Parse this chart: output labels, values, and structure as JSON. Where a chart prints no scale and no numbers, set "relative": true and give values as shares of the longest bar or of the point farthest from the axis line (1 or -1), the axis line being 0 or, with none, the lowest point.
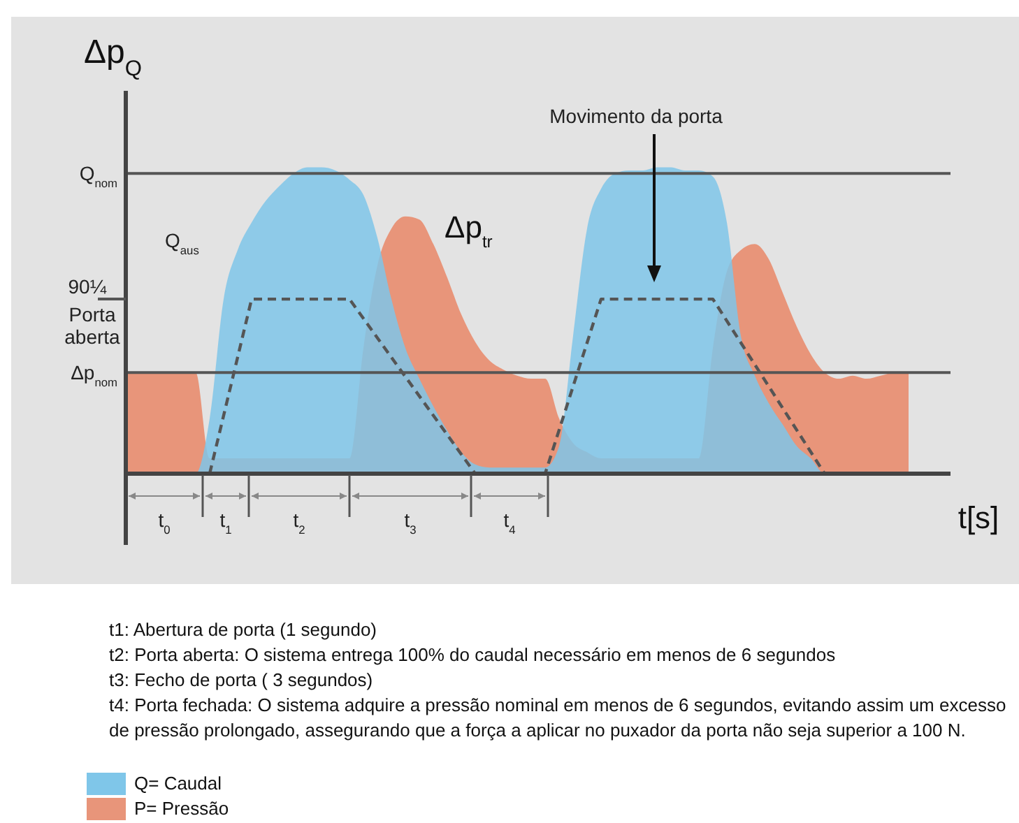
{
  "chart_data": {
    "type": "area",
    "relative": true,
    "ylabel": "Δp$_{Q}$",
    "xlabel": "t[s]",
    "categories": [
      null,
      null,
      null,
      null,
      null,
      null,
      null,
      null,
      null,
      null,
      null,
      null,
      null,
      null,
      null,
      null,
      null,
      null,
      null,
      null,
      null,
      null,
      null,
      null,
      null,
      null,
      null,
      null,
      null,
      null,
      null,
      null,
      null,
      null,
      null,
      null,
      null,
      null,
      null,
      null,
      null,
      null,
      null,
      null,
      null,
      null,
      null,
      null,
      null,
      null,
      null,
      null,
      null,
      null,
      null,
      null,
      null,
      null,
      null,
      null
    ],
    "series": [
      {
        "name": "Q= Caudal",
        "color": "#7fc6e9",
        "values": [
          0,
          0,
          0,
          0,
          0,
          0,
          0.18,
          0.57,
          0.73,
          0.82,
          0.89,
          0.94,
          0.98,
          1,
          1,
          0.99,
          0.96,
          0.91,
          0.77,
          0.57,
          0.41,
          0.31,
          0.22,
          0.14,
          0.07,
          0.03,
          0.02,
          0.02,
          0.02,
          0.02,
          0.02,
          0.09,
          0.45,
          0.8,
          0.93,
          0.98,
          0.99,
          0.99,
          1,
          1,
          0.99,
          0.99,
          0.97,
          0.82,
          0.45,
          0.32,
          0.23,
          0.16,
          0.09,
          0.05,
          0,
          0,
          0,
          0,
          0,
          0,
          0,
          null,
          null,
          null
        ]
      },
      {
        "name": "P= Pressão",
        "color": "#e8957a",
        "values": [
          0.33,
          0.33,
          0.33,
          0.33,
          0.33,
          0.33,
          0.05,
          0.05,
          0.05,
          0.05,
          0.05,
          0.05,
          0.05,
          0.05,
          0.05,
          0.05,
          0.05,
          0.41,
          0.68,
          0.8,
          0.84,
          0.83,
          0.75,
          0.64,
          0.52,
          0.43,
          0.37,
          0.34,
          0.32,
          0.31,
          0.31,
          0.18,
          0.1,
          0.07,
          0.05,
          0.05,
          0.05,
          0.05,
          0.05,
          0.05,
          0.05,
          0.05,
          0.41,
          0.66,
          0.73,
          0.75,
          0.7,
          0.59,
          0.48,
          0.39,
          0.33,
          0.31,
          0.32,
          0.31,
          0.32,
          0.33,
          0.33,
          null,
          null,
          null
        ]
      },
      {
        "type": "line",
        "color": "#555555",
        "line_style": "dashed",
        "values": [
          null,
          null,
          null,
          null,
          null,
          null,
          0,
          null,
          null,
          0.57,
          null,
          null,
          null,
          null,
          null,
          null,
          0.57,
          null,
          null,
          null,
          null,
          null,
          null,
          null,
          null,
          0,
          null,
          null,
          null,
          null,
          0,
          null,
          null,
          null,
          0.57,
          null,
          null,
          null,
          null,
          null,
          null,
          null,
          0.57,
          null,
          null,
          null,
          null,
          null,
          null,
          null,
          0,
          null,
          null,
          null,
          null,
          null,
          null,
          null,
          null,
          null
        ]
      }
    ],
    "ref_lines": [
      {
        "axis": "y",
        "value": 0.98,
        "label": "Q$_{nom}$",
        "color": "#555555"
      },
      {
        "axis": "y",
        "value": 0.33,
        "label": "Δp$_{nom}$",
        "color": "#555555"
      }
    ],
    "annotations": [
      "Q$_{aus}$",
      "Δp$_{tr}$",
      "Movimento da porta",
      "t$_{0}$",
      "t$_{1}$",
      "t$_{2}$",
      "t$_{3}$",
      "t$_{4}$",
      "90¼ Porta aberta",
      "t1: Abertura de porta (1 segundo)",
      "t2: Porta aberta: O sistema entrega 100% do caudal necessário em menos de 6 segundos",
      "t3: Fecho de porta ( 3 segundos)",
      "t4: Porta fechada: O sistema adquire a pressão nominal em menos de 6 segundos, evitando assim um excesso de pressão prolongado, assegurando que a força a aplicar no puxador da porta não seja superior a 100 N."
    ],
    "legend": "bottom"
  }
}
